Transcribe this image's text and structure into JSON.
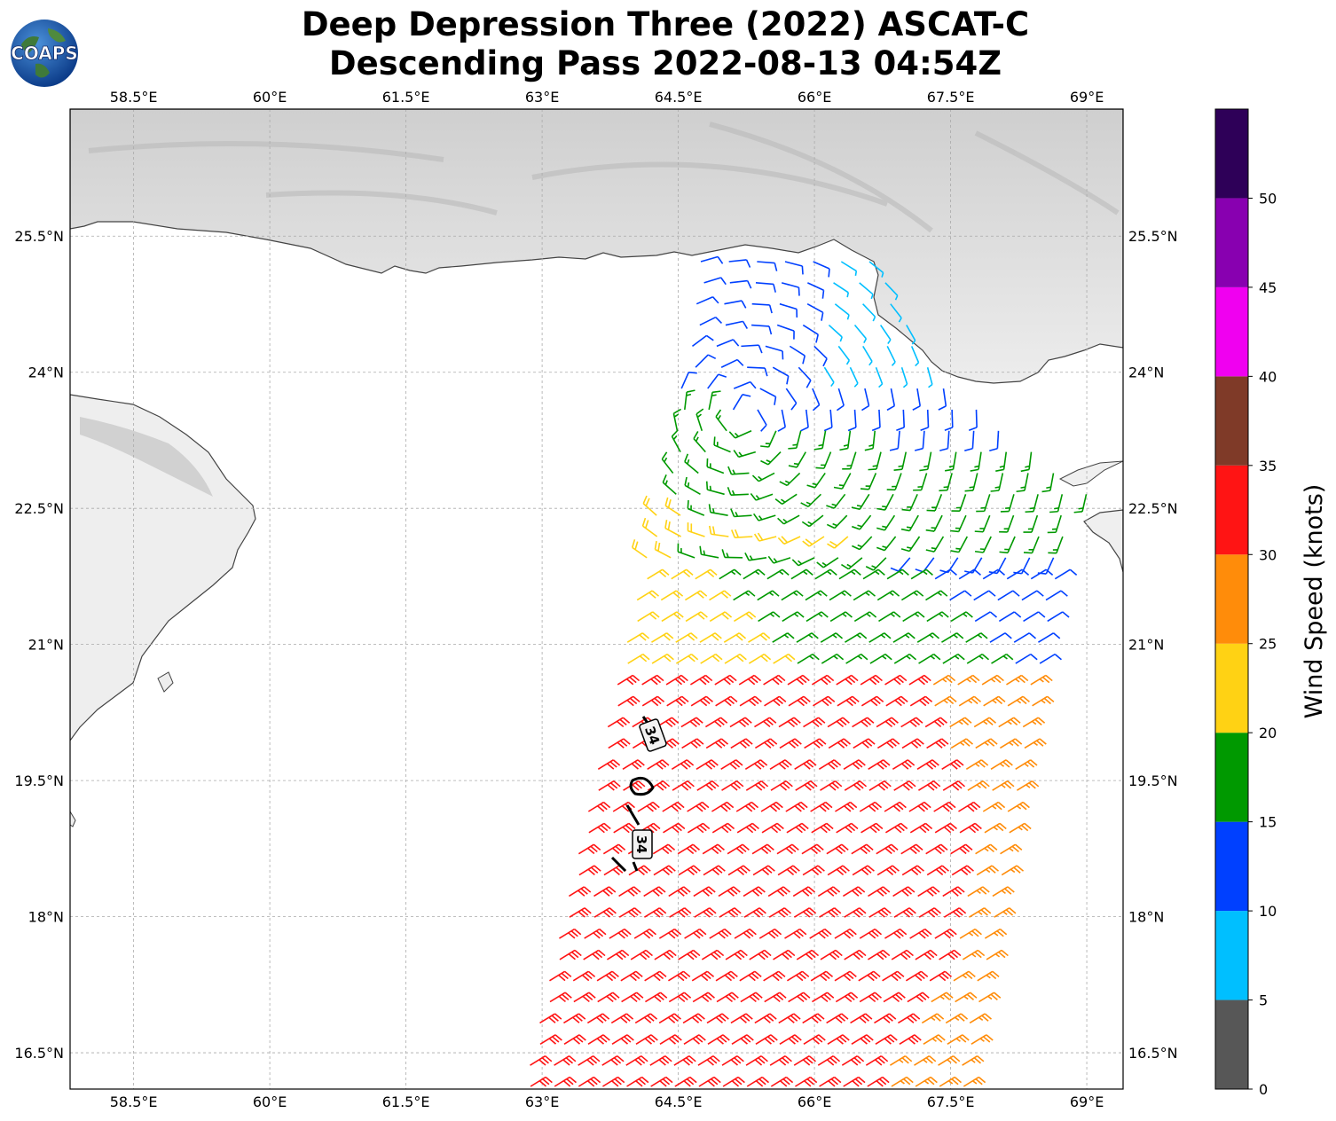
{
  "title": {
    "line1": "Deep Depression Three (2022) ASCAT-C",
    "line2": "Descending Pass 2022-08-13 04:54Z"
  },
  "logo": {
    "text": "COAPS"
  },
  "map": {
    "lon_range": [
      57.8,
      69.4
    ],
    "lat_range": [
      16.1,
      26.9
    ],
    "lon_ticks": [
      "58.5°E",
      "60°E",
      "61.5°E",
      "63°E",
      "64.5°E",
      "66°E",
      "67.5°E",
      "69°E"
    ],
    "lat_ticks": [
      "25.5°N",
      "24°N",
      "22.5°N",
      "21°N",
      "19.5°N",
      "18°N",
      "16.5°N"
    ],
    "contour_labels": [
      "34",
      "34"
    ]
  },
  "colorbar": {
    "label": "Wind Speed (knots)",
    "ticks": [
      "0",
      "5",
      "10",
      "15",
      "20",
      "25",
      "30",
      "35",
      "40",
      "45",
      "50"
    ],
    "bins": [
      {
        "range": "0-5",
        "color": "#575757"
      },
      {
        "range": "5-10",
        "color": "#00bfff"
      },
      {
        "range": "10-15",
        "color": "#0040ff"
      },
      {
        "range": "15-20",
        "color": "#009900"
      },
      {
        "range": "20-25",
        "color": "#ffd214"
      },
      {
        "range": "25-30",
        "color": "#ff8c0a"
      },
      {
        "range": "30-35",
        "color": "#ff1414"
      },
      {
        "range": "35-40",
        "color": "#7f3a28"
      },
      {
        "range": "40-45",
        "color": "#f000f0"
      },
      {
        "range": "45-50",
        "color": "#8800b0"
      },
      {
        "range": "50+",
        "color": "#2e0058"
      }
    ]
  }
}
